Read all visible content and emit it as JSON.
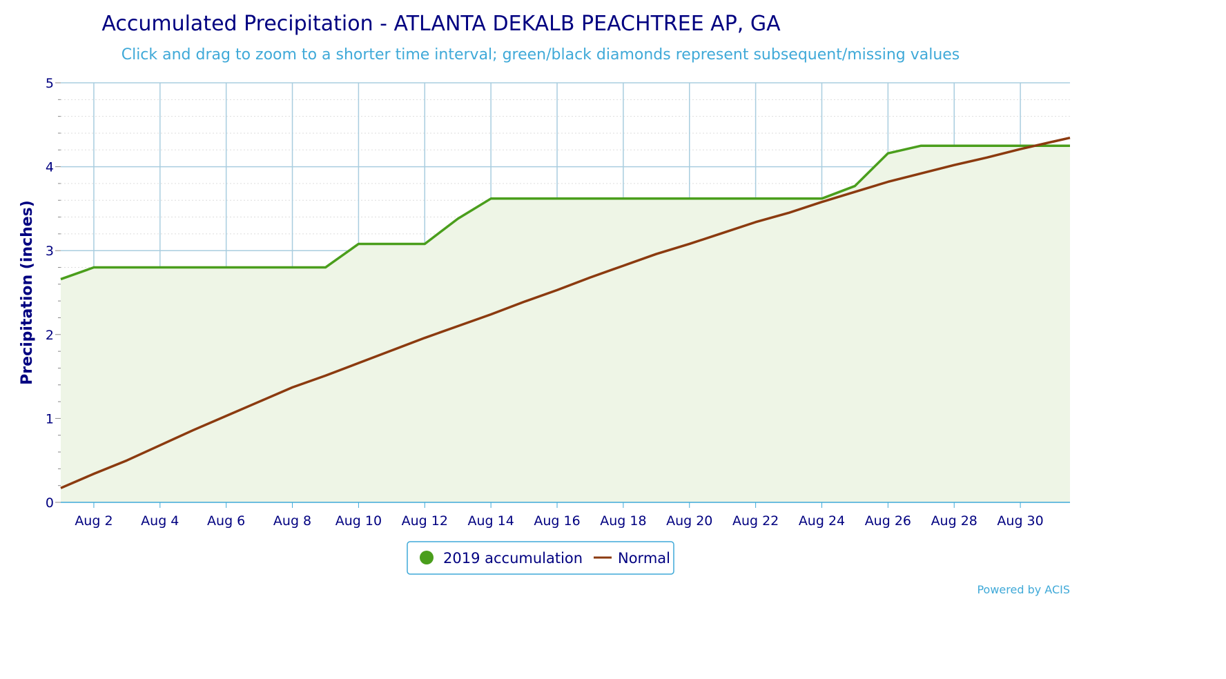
{
  "chart_data": {
    "type": "line",
    "title": "Accumulated Precipitation - ATLANTA DEKALB PEACHTREE AP, GA",
    "subtitle": "Click and drag to zoom to a shorter time interval; green/black diamonds represent subsequent/missing values",
    "xlabel": "",
    "ylabel": "Precipitation (inches)",
    "ylim": [
      0,
      5
    ],
    "yticks": [
      "0",
      "1",
      "2",
      "3",
      "4",
      "5"
    ],
    "xlim": [
      1,
      31.5
    ],
    "xticks": [
      {
        "x": 2,
        "label": "Aug 2"
      },
      {
        "x": 4,
        "label": "Aug 4"
      },
      {
        "x": 6,
        "label": "Aug 6"
      },
      {
        "x": 8,
        "label": "Aug 8"
      },
      {
        "x": 10,
        "label": "Aug 10"
      },
      {
        "x": 12,
        "label": "Aug 12"
      },
      {
        "x": 14,
        "label": "Aug 14"
      },
      {
        "x": 16,
        "label": "Aug 16"
      },
      {
        "x": 18,
        "label": "Aug 18"
      },
      {
        "x": 20,
        "label": "Aug 20"
      },
      {
        "x": 22,
        "label": "Aug 22"
      },
      {
        "x": 24,
        "label": "Aug 24"
      },
      {
        "x": 26,
        "label": "Aug 26"
      },
      {
        "x": 28,
        "label": "Aug 28"
      },
      {
        "x": 30,
        "label": "Aug 30"
      }
    ],
    "grid": true,
    "legend_position": "bottom-center",
    "series": [
      {
        "name": "2019 accumulation",
        "color": "#4a9e1c",
        "area": true,
        "x": [
          1,
          2,
          3,
          4,
          5,
          6,
          7,
          8,
          9,
          10,
          11,
          12,
          13,
          14,
          15,
          16,
          17,
          18,
          19,
          20,
          21,
          22,
          23,
          24,
          25,
          26,
          27,
          28,
          29,
          30,
          31
        ],
        "values": [
          2.66,
          2.8,
          2.8,
          2.8,
          2.8,
          2.8,
          2.8,
          2.8,
          2.8,
          3.08,
          3.08,
          3.08,
          3.38,
          3.62,
          3.62,
          3.62,
          3.62,
          3.62,
          3.62,
          3.62,
          3.62,
          3.62,
          3.62,
          3.62,
          3.77,
          4.16,
          4.25,
          4.25,
          4.25,
          4.25,
          4.25
        ]
      },
      {
        "name": "Normal",
        "color": "#8b3a0f",
        "area": false,
        "x": [
          1,
          2,
          3,
          4,
          5,
          6,
          7,
          8,
          9,
          10,
          11,
          12,
          13,
          14,
          15,
          16,
          17,
          18,
          19,
          20,
          21,
          22,
          23,
          24,
          25,
          26,
          27,
          28,
          29,
          30,
          31
        ],
        "values": [
          0.17,
          0.34,
          0.5,
          0.68,
          0.86,
          1.03,
          1.2,
          1.37,
          1.51,
          1.66,
          1.81,
          1.96,
          2.1,
          2.24,
          2.39,
          2.53,
          2.68,
          2.82,
          2.96,
          3.08,
          3.21,
          3.34,
          3.45,
          3.58,
          3.7,
          3.82,
          3.92,
          4.02,
          4.11,
          4.21,
          4.3
        ]
      }
    ]
  },
  "credit": "Powered by ACIS",
  "colors": {
    "grid_major": "#a9cddf",
    "grid_minor": "#dddddd",
    "area_fill": "#eef5e6",
    "axis": "#3fa9d8"
  }
}
